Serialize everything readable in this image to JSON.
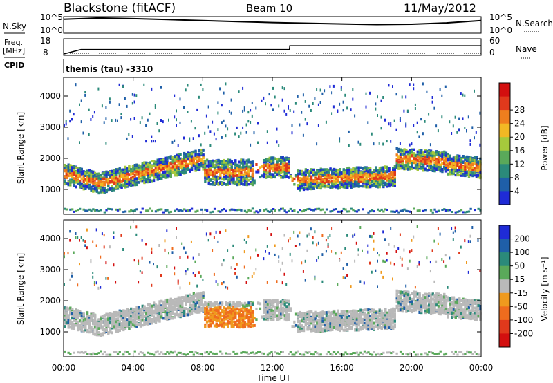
{
  "header": {
    "station": "Blackstone (fitACF)",
    "beam": "Beam 10",
    "date": "11/May/2012"
  },
  "top_panel": {
    "left_label_1": "N.Sky",
    "left_label_2": "Freq.",
    "left_label_3": "[MHz]",
    "left_label_4": "CPID",
    "right_label_1": "N.Search",
    "right_label_2": "Nave",
    "noise_ticks_left": [
      "10^5",
      "10^0"
    ],
    "noise_ticks_right": [
      "10^5",
      "10^0"
    ],
    "freq_ticks_left": [
      "18",
      "8"
    ],
    "nave_ticks_right": [
      "60",
      "0"
    ],
    "cpid_text": "themis (tau) -3310"
  },
  "colors": {
    "power_scale": [
      "#1f2bd6",
      "#1f5fa8",
      "#2b8a7a",
      "#5aa95a",
      "#a6c93c",
      "#f2b824",
      "#ef7e1e",
      "#e0391c",
      "#d30f0f"
    ],
    "velocity_scale": [
      "#1f2bd6",
      "#1f5fa8",
      "#2b8a7a",
      "#5aa95a",
      "#b9b9b9",
      "#ef9a1e",
      "#ef6c1e",
      "#e0391c",
      "#d30f0f"
    ],
    "ground_scatter": "#b9b9b9"
  },
  "chart_data": [
    {
      "type": "line",
      "title": "Blackstone (fitACF)",
      "series": [
        {
          "name": "N.Sky",
          "x": [
            "00:00",
            "02:00",
            "04:00",
            "06:00",
            "08:00",
            "10:00",
            "12:00",
            "14:00",
            "16:00",
            "18:00",
            "20:00",
            "22:00",
            "24:00"
          ],
          "values": [
            4.2,
            4.6,
            4.4,
            4.1,
            3.8,
            3.5,
            3.2,
            3.0,
            2.8,
            2.6,
            2.7,
            3.1,
            3.8
          ]
        }
      ],
      "ylabel": "N.Sky"
    },
    {
      "type": "line",
      "series": [
        {
          "name": "Freq.",
          "x": [
            "00:00",
            "01:00",
            "12:59",
            "13:00",
            "24:00"
          ],
          "values": [
            8.8,
            11.5,
            11.5,
            13.8,
            13.8
          ]
        }
      ],
      "ylabel": "Freq. [MHz]",
      "ylim": [
        8,
        18
      ]
    },
    {
      "type": "heatmap",
      "quantity": "Power",
      "xlabel": "Time UT",
      "ylabel": "Slant Range [km]",
      "x_ticks": [
        "00:00",
        "04:00",
        "08:00",
        "12:00",
        "16:00",
        "20:00",
        "00:00"
      ],
      "y_ticks": [
        "1000",
        "2000",
        "3000",
        "4000"
      ],
      "ylim": [
        200,
        4600
      ],
      "colorbar": {
        "label": "Power [dB]",
        "ticks": [
          "4",
          "8",
          "12",
          "16",
          "20",
          "24",
          "28"
        ]
      }
    },
    {
      "type": "heatmap",
      "quantity": "Velocity",
      "xlabel": "Time UT",
      "ylabel": "Slant Range [km]",
      "x_ticks": [
        "00:00",
        "04:00",
        "08:00",
        "12:00",
        "16:00",
        "20:00",
        "00:00"
      ],
      "y_ticks": [
        "1000",
        "2000",
        "3000",
        "4000"
      ],
      "ylim": [
        200,
        4600
      ],
      "colorbar": {
        "label": "Velocity [m s⁻¹]",
        "ticks": [
          "200",
          "100",
          "50",
          "15",
          "-15",
          "-50",
          "-100",
          "-200"
        ]
      }
    }
  ],
  "xaxis": {
    "label": "Time UT",
    "ticks": [
      "00:00",
      "04:00",
      "08:00",
      "12:00",
      "16:00",
      "20:00",
      "00:00"
    ]
  }
}
